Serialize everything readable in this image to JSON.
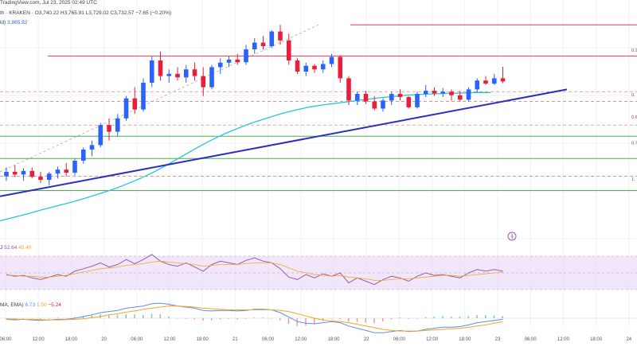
{
  "header": {
    "brand": "TradingView.com",
    "exchange": "th · KRAKEN",
    "ohlc_line": "O3,740.22 H3,765.91 L3,729.02 C3,732.57 −7.65 (−0.20%)",
    "date_line": "Jul 23, 2025 02:49 UTC",
    "vol_label": "ld)",
    "vol_value": "3,865.92"
  },
  "rsi_panel": {
    "label": "J",
    "value1": "52.64",
    "value2": "45.40"
  },
  "macd_panel": {
    "label": "MA, EMA)",
    "value1": "6.73",
    "value2": "1.50",
    "value3": "−5.24"
  },
  "fib_labels": [
    "0.2",
    "0.",
    "0.6",
    "0.7",
    "1."
  ],
  "x_ticks": [
    "06:00",
    "12:00",
    "18:00",
    "20",
    "06:00",
    "12:00",
    "18:00",
    "21",
    "06:00",
    "12:00",
    "18:00",
    "22",
    "06:00",
    "12:00",
    "18:00",
    "23",
    "06:00",
    "12:00",
    "18:00",
    "24"
  ],
  "colors": {
    "up": "#2962ff",
    "down": "#e91e3a",
    "sma": "#26c6da",
    "trend": "#2b2fbf",
    "resistance": "#e53950",
    "support": "#4caf50",
    "rsi": "#9b59b6",
    "rsi_ma": "#f5a623",
    "rsi_band": "#e9d7f5",
    "macd": "#5b8def",
    "signal": "#f5a623"
  },
  "chart_data": {
    "type": "candlestick",
    "timeframe": "hourly",
    "candles": [
      {
        "o": 3520,
        "h": 3540,
        "l": 3510,
        "c": 3530,
        "up": true
      },
      {
        "o": 3530,
        "h": 3545,
        "l": 3518,
        "c": 3524,
        "up": false
      },
      {
        "o": 3524,
        "h": 3538,
        "l": 3510,
        "c": 3532,
        "up": true
      },
      {
        "o": 3532,
        "h": 3540,
        "l": 3516,
        "c": 3519,
        "up": false
      },
      {
        "o": 3519,
        "h": 3530,
        "l": 3505,
        "c": 3512,
        "up": false
      },
      {
        "o": 3512,
        "h": 3530,
        "l": 3500,
        "c": 3526,
        "up": true
      },
      {
        "o": 3526,
        "h": 3542,
        "l": 3515,
        "c": 3535,
        "up": true
      },
      {
        "o": 3535,
        "h": 3550,
        "l": 3520,
        "c": 3528,
        "up": false
      },
      {
        "o": 3528,
        "h": 3560,
        "l": 3522,
        "c": 3555,
        "up": true
      },
      {
        "o": 3555,
        "h": 3585,
        "l": 3548,
        "c": 3580,
        "up": true
      },
      {
        "o": 3580,
        "h": 3600,
        "l": 3565,
        "c": 3590,
        "up": true
      },
      {
        "o": 3590,
        "h": 3640,
        "l": 3585,
        "c": 3635,
        "up": true
      },
      {
        "o": 3635,
        "h": 3650,
        "l": 3600,
        "c": 3620,
        "up": false
      },
      {
        "o": 3620,
        "h": 3660,
        "l": 3610,
        "c": 3650,
        "up": true
      },
      {
        "o": 3650,
        "h": 3700,
        "l": 3645,
        "c": 3695,
        "up": true
      },
      {
        "o": 3695,
        "h": 3720,
        "l": 3660,
        "c": 3670,
        "up": false
      },
      {
        "o": 3670,
        "h": 3740,
        "l": 3665,
        "c": 3730,
        "up": true
      },
      {
        "o": 3730,
        "h": 3790,
        "l": 3720,
        "c": 3780,
        "up": true
      },
      {
        "o": 3780,
        "h": 3800,
        "l": 3735,
        "c": 3745,
        "up": false
      },
      {
        "o": 3745,
        "h": 3760,
        "l": 3730,
        "c": 3750,
        "up": true
      },
      {
        "o": 3750,
        "h": 3765,
        "l": 3735,
        "c": 3742,
        "up": false
      },
      {
        "o": 3742,
        "h": 3770,
        "l": 3730,
        "c": 3760,
        "up": true
      },
      {
        "o": 3760,
        "h": 3775,
        "l": 3735,
        "c": 3745,
        "up": false
      },
      {
        "o": 3745,
        "h": 3765,
        "l": 3700,
        "c": 3720,
        "up": false
      },
      {
        "o": 3720,
        "h": 3770,
        "l": 3715,
        "c": 3765,
        "up": true
      },
      {
        "o": 3765,
        "h": 3785,
        "l": 3750,
        "c": 3775,
        "up": true
      },
      {
        "o": 3775,
        "h": 3790,
        "l": 3765,
        "c": 3782,
        "up": true
      },
      {
        "o": 3782,
        "h": 3795,
        "l": 3770,
        "c": 3776,
        "up": false
      },
      {
        "o": 3776,
        "h": 3815,
        "l": 3770,
        "c": 3805,
        "up": true
      },
      {
        "o": 3805,
        "h": 3830,
        "l": 3795,
        "c": 3820,
        "up": true
      },
      {
        "o": 3820,
        "h": 3835,
        "l": 3805,
        "c": 3812,
        "up": false
      },
      {
        "o": 3812,
        "h": 3848,
        "l": 3808,
        "c": 3845,
        "up": true
      },
      {
        "o": 3845,
        "h": 3860,
        "l": 3815,
        "c": 3825,
        "up": false
      },
      {
        "o": 3825,
        "h": 3840,
        "l": 3770,
        "c": 3780,
        "up": false
      },
      {
        "o": 3780,
        "h": 3785,
        "l": 3750,
        "c": 3755,
        "up": false
      },
      {
        "o": 3755,
        "h": 3775,
        "l": 3745,
        "c": 3768,
        "up": true
      },
      {
        "o": 3768,
        "h": 3772,
        "l": 3752,
        "c": 3760,
        "up": false
      },
      {
        "o": 3760,
        "h": 3780,
        "l": 3752,
        "c": 3772,
        "up": true
      },
      {
        "o": 3772,
        "h": 3795,
        "l": 3765,
        "c": 3788,
        "up": true
      },
      {
        "o": 3788,
        "h": 3792,
        "l": 3730,
        "c": 3740,
        "up": false
      },
      {
        "o": 3740,
        "h": 3745,
        "l": 3680,
        "c": 3690,
        "up": false
      },
      {
        "o": 3690,
        "h": 3710,
        "l": 3680,
        "c": 3705,
        "up": true
      },
      {
        "o": 3705,
        "h": 3712,
        "l": 3682,
        "c": 3688,
        "up": false
      },
      {
        "o": 3688,
        "h": 3700,
        "l": 3668,
        "c": 3672,
        "up": false
      },
      {
        "o": 3672,
        "h": 3695,
        "l": 3665,
        "c": 3690,
        "up": true
      },
      {
        "o": 3690,
        "h": 3710,
        "l": 3680,
        "c": 3705,
        "up": true
      },
      {
        "o": 3705,
        "h": 3715,
        "l": 3690,
        "c": 3698,
        "up": false
      },
      {
        "o": 3698,
        "h": 3700,
        "l": 3672,
        "c": 3675,
        "up": false
      },
      {
        "o": 3675,
        "h": 3710,
        "l": 3672,
        "c": 3705,
        "up": true
      },
      {
        "o": 3705,
        "h": 3725,
        "l": 3698,
        "c": 3712,
        "up": true
      },
      {
        "o": 3712,
        "h": 3720,
        "l": 3700,
        "c": 3706,
        "up": false
      },
      {
        "o": 3706,
        "h": 3718,
        "l": 3698,
        "c": 3710,
        "up": true
      },
      {
        "o": 3710,
        "h": 3715,
        "l": 3690,
        "c": 3702,
        "up": false
      },
      {
        "o": 3702,
        "h": 3712,
        "l": 3688,
        "c": 3692,
        "up": false
      },
      {
        "o": 3692,
        "h": 3720,
        "l": 3688,
        "c": 3715,
        "up": true
      },
      {
        "o": 3715,
        "h": 3740,
        "l": 3708,
        "c": 3735,
        "up": true
      },
      {
        "o": 3735,
        "h": 3745,
        "l": 3725,
        "c": 3728,
        "up": false
      },
      {
        "o": 3728,
        "h": 3750,
        "l": 3725,
        "c": 3740,
        "up": true
      },
      {
        "o": 3740,
        "h": 3766,
        "l": 3729,
        "c": 3733,
        "up": false
      }
    ],
    "sma100": [
      3420,
      3428,
      3436,
      3445,
      3453,
      3461,
      3470,
      3480,
      3490,
      3502,
      3515,
      3530,
      3547,
      3565,
      3583,
      3600,
      3615,
      3628,
      3640,
      3650,
      3660,
      3668,
      3675,
      3680,
      3684,
      3688,
      3692,
      3696,
      3699,
      3702,
      3704,
      3705,
      3706,
      3707,
      3708,
      3708
    ],
    "trendline": {
      "start": 3475,
      "end": 3715
    },
    "levels": {
      "resistance_top": 3860,
      "resistance_mid": 3790,
      "fib_0": 3710,
      "fib_2": 3688,
      "fib_3": 3635,
      "support_1": 3610,
      "support_2": 3560,
      "fib_4": 3520,
      "support_3": 3488
    },
    "rsi": [
      48,
      46,
      47,
      44,
      42,
      45,
      48,
      46,
      52,
      55,
      58,
      62,
      57,
      60,
      66,
      61,
      66,
      72,
      64,
      60,
      58,
      62,
      57,
      52,
      60,
      64,
      62,
      60,
      65,
      68,
      64,
      62,
      55,
      45,
      42,
      48,
      44,
      49,
      46,
      50,
      38,
      44,
      40,
      36,
      42,
      46,
      44,
      40,
      46,
      50,
      47,
      48,
      46,
      44,
      50,
      54,
      52,
      54,
      52
    ],
    "rsi_ma": [
      47,
      47,
      46,
      46,
      45,
      45,
      46,
      47,
      49,
      51,
      53,
      55,
      56,
      57,
      59,
      60,
      61,
      63,
      64,
      63,
      62,
      61,
      60,
      58,
      59,
      60,
      60,
      60,
      61,
      62,
      62,
      62,
      60,
      56,
      52,
      50,
      48,
      47,
      46,
      47,
      45,
      44,
      43,
      41,
      41,
      42,
      43,
      43,
      44,
      45,
      46,
      47,
      47,
      46,
      47,
      48,
      49,
      50,
      51
    ],
    "macd": [
      -2,
      -3,
      -2,
      -3,
      -4,
      -3,
      -2,
      -2,
      0,
      3,
      6,
      10,
      12,
      14,
      18,
      20,
      22,
      26,
      27,
      25,
      22,
      20,
      18,
      14,
      13,
      14,
      14,
      13,
      14,
      16,
      16,
      15,
      10,
      2,
      -6,
      -9,
      -10,
      -8,
      -6,
      -8,
      -14,
      -18,
      -22,
      -26,
      -26,
      -24,
      -22,
      -24,
      -23,
      -20,
      -18,
      -16,
      -16,
      -15,
      -12,
      -8,
      -6,
      -4,
      -2
    ],
    "signal": [
      -1,
      -1.5,
      -2,
      -2,
      -2.5,
      -3,
      -3,
      -2.5,
      -2,
      -1,
      1,
      3,
      6,
      8,
      11,
      13,
      16,
      18,
      20,
      22,
      22,
      21,
      20,
      18,
      17,
      16,
      15,
      15,
      15,
      15,
      15,
      15,
      14,
      12,
      8,
      4,
      0,
      -3,
      -5,
      -6,
      -8,
      -11,
      -14,
      -17,
      -20,
      -22,
      -23,
      -23,
      -23,
      -22,
      -21,
      -20,
      -19,
      -18,
      -16,
      -14,
      -12,
      -9,
      -6
    ]
  }
}
